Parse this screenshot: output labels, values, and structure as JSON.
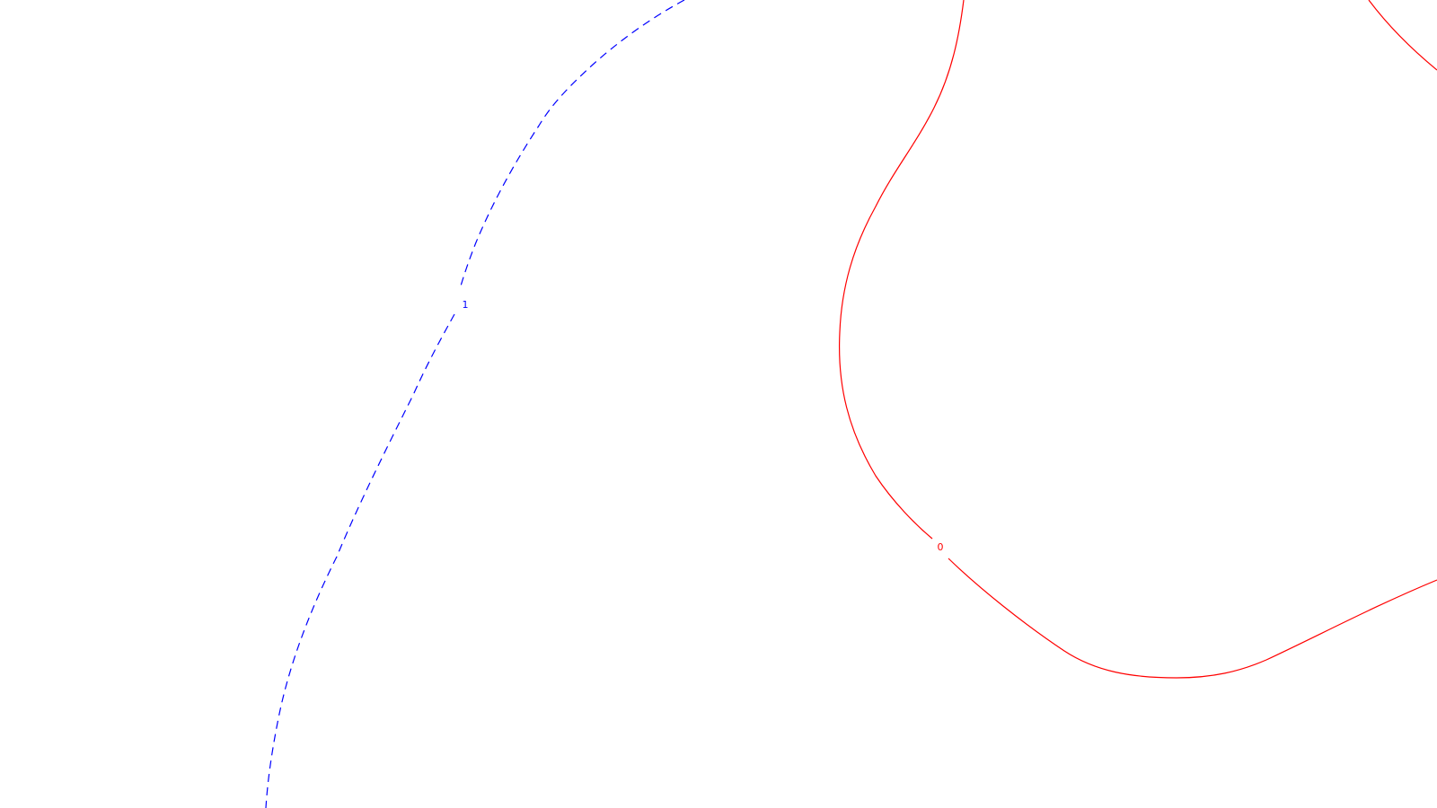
{
  "contours": [
    {
      "id": "contour-1",
      "label": "1",
      "color": "#0000ff",
      "style": "dashed"
    },
    {
      "id": "contour-0",
      "label": "0",
      "color": "#ff0000",
      "style": "solid"
    }
  ]
}
